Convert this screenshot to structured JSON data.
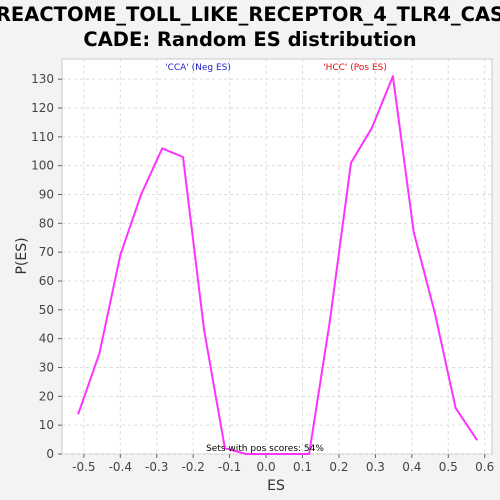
{
  "chart_data": {
    "type": "line",
    "title_lines": [
      "REACTOME_TOLL_LIKE_RECEPTOR_4_TLR4_CAS",
      "CADE: Random ES distribution"
    ],
    "xlabel": "ES",
    "ylabel": "P(ES)",
    "xlim": [
      -0.56,
      0.62
    ],
    "ylim": [
      0,
      137
    ],
    "x_ticks": [
      -0.5,
      -0.4,
      -0.3,
      -0.2,
      -0.1,
      0.0,
      0.1,
      0.2,
      0.3,
      0.4,
      0.5,
      0.6
    ],
    "x_tick_labels": [
      "-0.5",
      "-0.4",
      "-0.3",
      "-0.2",
      "-0.1",
      "0.0",
      "0.1",
      "0.2",
      "0.3",
      "0.4",
      "0.5",
      "0.6"
    ],
    "y_ticks": [
      0,
      10,
      20,
      30,
      40,
      50,
      60,
      70,
      80,
      90,
      100,
      110,
      120,
      130
    ],
    "grid": true,
    "series": [
      {
        "color": "#ff33ff",
        "x": [
          -0.515,
          -0.457,
          -0.4,
          -0.343,
          -0.285,
          -0.228,
          -0.17,
          -0.113,
          -0.055,
          0.0,
          0.06,
          0.118,
          0.175,
          0.233,
          0.29,
          0.348,
          0.405,
          0.463,
          0.52,
          0.578
        ],
        "y": [
          14,
          35,
          69,
          90,
          106,
          103,
          43,
          2,
          0,
          0,
          0,
          0,
          46,
          101,
          113,
          131,
          77,
          49,
          16,
          5
        ]
      }
    ],
    "annotations": [
      {
        "text": "'CCA' (Neg ES)",
        "color": "#2222cc"
      },
      {
        "text": "'HCC' (Pos ES)",
        "color": "#dd1111"
      },
      {
        "text": "Sets with pos scores: 54%",
        "color": "#000000"
      }
    ]
  }
}
